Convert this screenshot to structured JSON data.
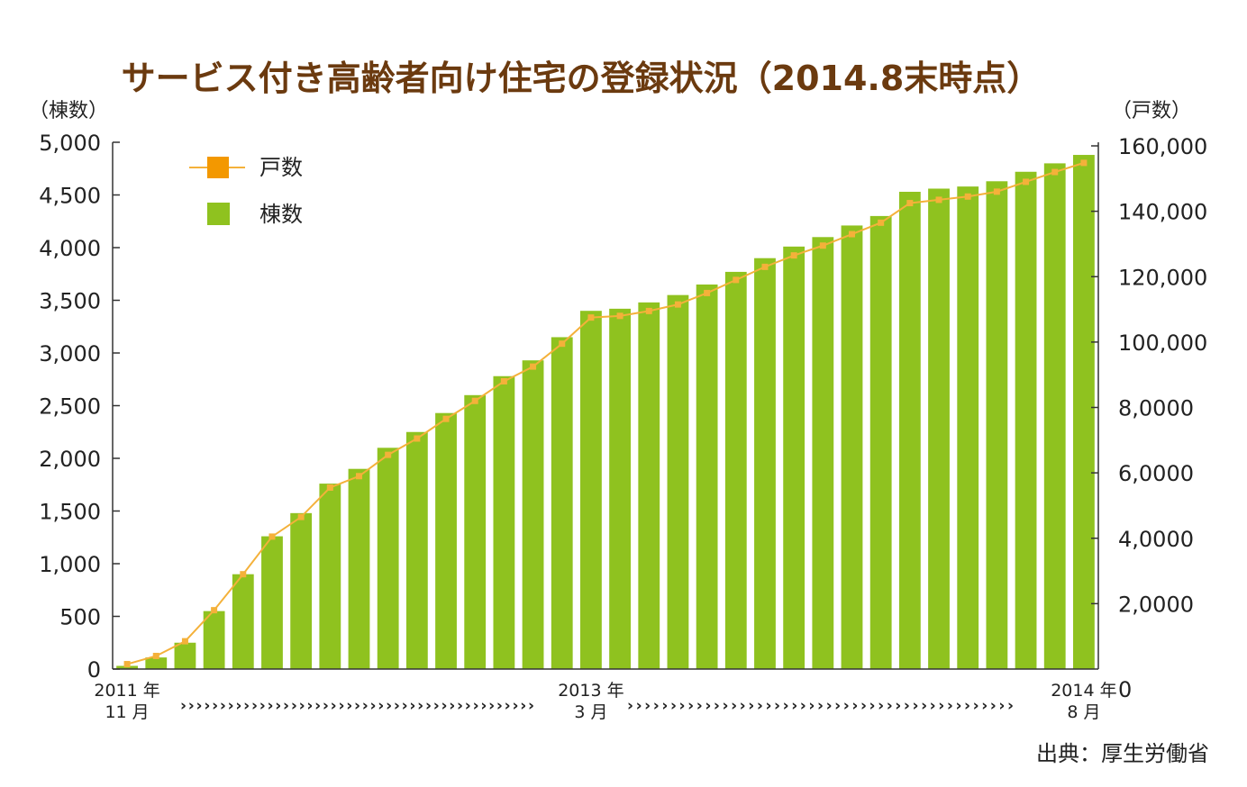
{
  "chart_data": {
    "type": "bar+line",
    "title": "サービス付き高齢者向け住宅の登録状況（2014.8末時点）",
    "left_axis": {
      "unit_label": "（棟数）",
      "ylim": [
        0,
        5000
      ],
      "tick_labels": [
        "0",
        "500",
        "1,000",
        "1,500",
        "2,000",
        "2,500",
        "3,000",
        "3,500",
        "4,000",
        "4,500",
        "5,000"
      ]
    },
    "right_axis": {
      "unit_label": "（戸数）",
      "ylim": [
        0,
        160000
      ],
      "tick_values": [
        0,
        20000,
        40000,
        60000,
        80000,
        100000,
        120000,
        140000,
        160000
      ],
      "tick_labels": [
        "0",
        "2,0000",
        "4,0000",
        "6,0000",
        "8,0000",
        "100,000",
        "120,000",
        "140,000",
        "160,000"
      ]
    },
    "x_labels": [
      {
        "index": 0,
        "line1": "2011 年",
        "line2": "11 月"
      },
      {
        "index": 16,
        "line1": "2013 年",
        "line2": "3 月"
      },
      {
        "index": 33,
        "line1": "2014 年",
        "line2": "8 月"
      }
    ],
    "arrow_text": "›››››››››››››››››››››››››››››››››››››››››››››",
    "legend": [
      {
        "name": "戸数",
        "type": "line",
        "color": "#f39800"
      },
      {
        "name": "棟数",
        "type": "bar",
        "color": "#8fc21f"
      }
    ],
    "series": [
      {
        "name": "棟数",
        "axis": "left",
        "color": "#8fc21f",
        "values": [
          30,
          110,
          250,
          550,
          900,
          1260,
          1480,
          1760,
          1900,
          2100,
          2250,
          2430,
          2600,
          2780,
          2930,
          3150,
          3400,
          3420,
          3480,
          3550,
          3650,
          3770,
          3900,
          4010,
          4100,
          4210,
          4300,
          4530,
          4560,
          4580,
          4630,
          4720,
          4800,
          4880
        ]
      },
      {
        "name": "戸数",
        "axis": "right",
        "color": "#f4b13a",
        "values": [
          1500,
          4000,
          8500,
          18000,
          29000,
          40500,
          46500,
          55500,
          59000,
          65500,
          70500,
          76500,
          82000,
          88000,
          92500,
          99500,
          107500,
          108000,
          109500,
          111500,
          115000,
          119000,
          123000,
          126500,
          129500,
          133000,
          136500,
          142500,
          143500,
          144500,
          146000,
          149000,
          152000,
          154800
        ]
      }
    ],
    "grid": false
  },
  "source": "出典：厚生労働省"
}
